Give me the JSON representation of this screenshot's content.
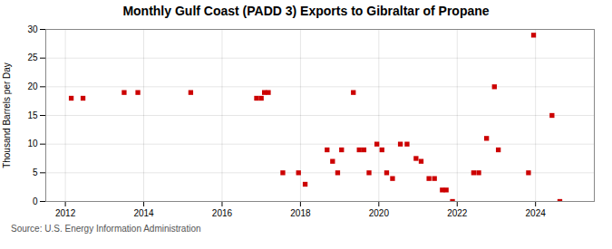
{
  "chart_data": {
    "type": "scatter",
    "title": "Monthly Gulf Coast (PADD 3) Exports to Gibraltar of Propane",
    "ylabel": "Thousand Barrels per Day",
    "source": "Source: U.S. Energy Information Administration",
    "color": "#cc0000",
    "marker": "square",
    "grid": true,
    "xlim": [
      2011.5,
      2025.5
    ],
    "ylim": [
      0,
      30
    ],
    "xticks": [
      2012,
      2014,
      2016,
      2018,
      2020,
      2022,
      2024
    ],
    "yticks": [
      0,
      5,
      10,
      15,
      20,
      25,
      30
    ],
    "x": [
      2012.15,
      2012.45,
      2013.5,
      2013.85,
      2015.2,
      2016.88,
      2017.0,
      2017.08,
      2017.18,
      2017.55,
      2017.95,
      2018.12,
      2018.68,
      2018.82,
      2018.95,
      2019.05,
      2019.35,
      2019.5,
      2019.62,
      2019.75,
      2019.95,
      2020.08,
      2020.2,
      2020.35,
      2020.55,
      2020.72,
      2020.95,
      2021.08,
      2021.28,
      2021.42,
      2021.62,
      2021.72,
      2021.88,
      2022.42,
      2022.55,
      2022.75,
      2022.95,
      2023.05,
      2023.82,
      2023.95,
      2024.42,
      2024.62
    ],
    "values": [
      18,
      18,
      19,
      19,
      19,
      18,
      18,
      19,
      19,
      5,
      5,
      3,
      9,
      7,
      5,
      9,
      19,
      9,
      9,
      5,
      10,
      9,
      5,
      4,
      10,
      10,
      7.5,
      7,
      4,
      4,
      2,
      2,
      0,
      5,
      5,
      11,
      20,
      9,
      5,
      29,
      15,
      0
    ]
  }
}
